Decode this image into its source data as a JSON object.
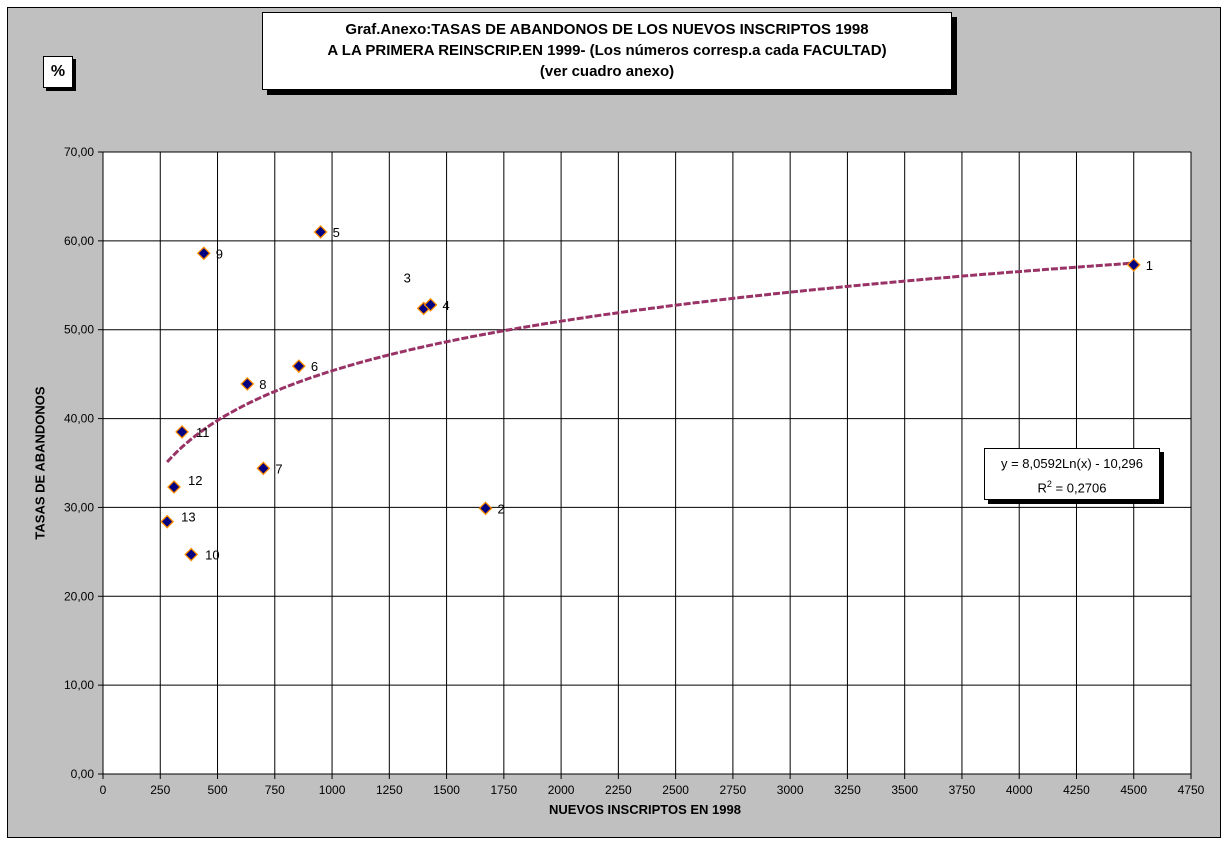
{
  "chart_data": {
    "type": "scatter",
    "title_lines": [
      "Graf.Anexo:TASAS DE ABANDONOS DE LOS NUEVOS INSCRIPTOS 1998",
      "A LA PRIMERA REINSCRIP.EN 1999- (Los números corresp.a cada  FACULTAD)",
      "(ver cuadro anexo)"
    ],
    "unit_label": "%",
    "xlabel": "NUEVOS INSCRIPTOS EN 1998",
    "ylabel": "TASAS DE ABANDONOS",
    "xlim": [
      0,
      4750
    ],
    "ylim": [
      0,
      70
    ],
    "x_ticks": [
      "0",
      "250",
      "500",
      "750",
      "1000",
      "1250",
      "1500",
      "1750",
      "2000",
      "2250",
      "2500",
      "2750",
      "3000",
      "3250",
      "3500",
      "3750",
      "4000",
      "4250",
      "4500",
      "4750"
    ],
    "y_ticks": [
      "0,00",
      "10,00",
      "20,00",
      "30,00",
      "40,00",
      "50,00",
      "60,00",
      "70,00"
    ],
    "grid": true,
    "points": [
      {
        "label": "1",
        "x": 4500,
        "y": 57.3
      },
      {
        "label": "2",
        "x": 1670,
        "y": 29.9
      },
      {
        "label": "3",
        "x": 1400,
        "y": 52.4
      },
      {
        "label": "4",
        "x": 1430,
        "y": 52.8
      },
      {
        "label": "5",
        "x": 950,
        "y": 61.0
      },
      {
        "label": "6",
        "x": 855,
        "y": 45.9
      },
      {
        "label": "7",
        "x": 700,
        "y": 34.4
      },
      {
        "label": "8",
        "x": 630,
        "y": 43.9
      },
      {
        "label": "9",
        "x": 440,
        "y": 58.6
      },
      {
        "label": "10",
        "x": 385,
        "y": 24.7
      },
      {
        "label": "11",
        "x": 345,
        "y": 38.5
      },
      {
        "label": "12",
        "x": 310,
        "y": 32.3
      },
      {
        "label": "13",
        "x": 280,
        "y": 28.4
      }
    ],
    "trendline": {
      "type": "logarithmic",
      "a": 8.0592,
      "b": -10.296,
      "x_from": 280,
      "x_to": 4500,
      "equation": "y = 8,0592Ln(x) - 10,296",
      "r2_prefix": "R",
      "r2_sup": "2",
      "r2_value": " = 0,2706"
    },
    "colors": {
      "background": "#c0c0c0",
      "plot_area": "#ffffff",
      "marker_fill": "#000080",
      "marker_edge": "#ff8c00",
      "trendline": "#993366"
    }
  }
}
